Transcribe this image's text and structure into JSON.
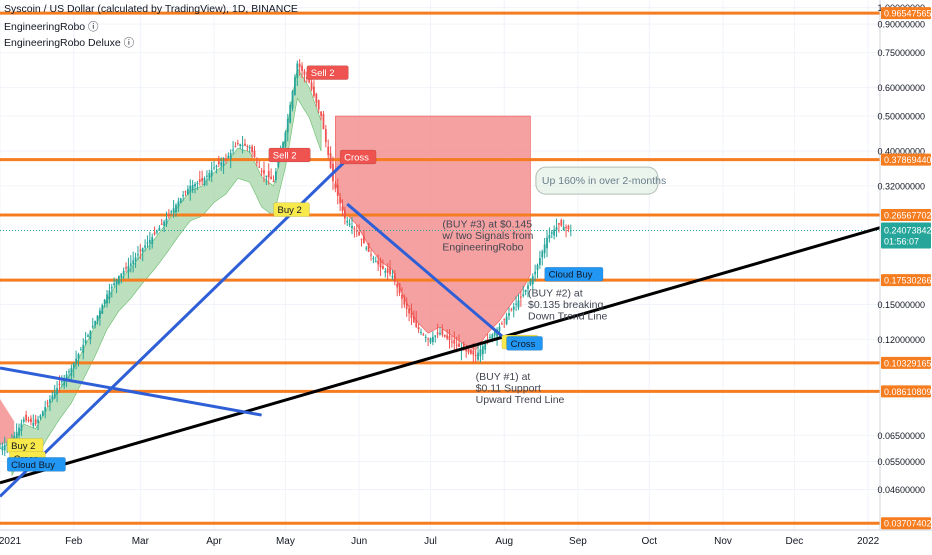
{
  "header": {
    "title": "Syscoin / US Dollar (calculated by TradingView), 1D, BINANCE",
    "indicator1": "EngineeringRobo ⓘ",
    "indicator2": "EngineeringRobo Deluxe ⓘ"
  },
  "chart_data": {
    "type": "candlestick",
    "currency": "USD",
    "y_scale": "log",
    "ylim": [
      0.0355,
      1.05
    ],
    "x_start": "2021-01-01",
    "x_end": "2022-01-06",
    "y_ticks": [
      1.0,
      0.9,
      0.75,
      0.6,
      0.5,
      0.4,
      0.32,
      0.15,
      0.12,
      0.065,
      0.055,
      0.046
    ],
    "y_tick_labels": [
      "1.00000000",
      "0.90000000",
      "0.75000000",
      "0.60000000",
      "0.50000000",
      "0.40000000",
      "0.32000000",
      "0.15000000",
      "0.12000000",
      "0.06500000",
      "0.05500000",
      "0.04600000"
    ],
    "x_ticks": [
      {
        "date": "2021-01-01",
        "label": "2021"
      },
      {
        "date": "2021-02-01",
        "label": "Feb"
      },
      {
        "date": "2021-03-01",
        "label": "Mar"
      },
      {
        "date": "2021-04-01",
        "label": "Apr"
      },
      {
        "date": "2021-05-01",
        "label": "May"
      },
      {
        "date": "2021-06-01",
        "label": "Jun"
      },
      {
        "date": "2021-07-01",
        "label": "Jul"
      },
      {
        "date": "2021-08-01",
        "label": "Aug"
      },
      {
        "date": "2021-09-01",
        "label": "Sep"
      },
      {
        "date": "2021-10-01",
        "label": "Oct"
      },
      {
        "date": "2021-11-01",
        "label": "Nov"
      },
      {
        "date": "2021-12-01",
        "label": "Dec"
      },
      {
        "date": "2022-01-01",
        "label": "2022"
      }
    ],
    "current_price": {
      "value": 0.24073842,
      "label": "0.24073842",
      "countdown": "01:56:07"
    },
    "levels": [
      {
        "value": 0.96547565,
        "label": "0.96547565"
      },
      {
        "value": 0.3786944,
        "label": "0.37869440"
      },
      {
        "value": 0.26567702,
        "label": "0.26567702"
      },
      {
        "value": 0.17530266,
        "label": "0.17530266"
      },
      {
        "value": 0.10329165,
        "label": "0.10329165"
      },
      {
        "value": 0.08610809,
        "label": "0.08610809"
      },
      {
        "value": 0.03707402,
        "label": "0.03707402"
      }
    ],
    "series": [
      {
        "date": "2021-01-01",
        "close": 0.06
      },
      {
        "date": "2021-01-06",
        "close": 0.063
      },
      {
        "date": "2021-01-11",
        "close": 0.072
      },
      {
        "date": "2021-01-16",
        "close": 0.07
      },
      {
        "date": "2021-01-21",
        "close": 0.08
      },
      {
        "date": "2021-01-26",
        "close": 0.09
      },
      {
        "date": "2021-01-31",
        "close": 0.1
      },
      {
        "date": "2021-02-05",
        "close": 0.116
      },
      {
        "date": "2021-02-10",
        "close": 0.135
      },
      {
        "date": "2021-02-15",
        "close": 0.16
      },
      {
        "date": "2021-02-20",
        "close": 0.18
      },
      {
        "date": "2021-02-25",
        "close": 0.195
      },
      {
        "date": "2021-03-02",
        "close": 0.215
      },
      {
        "date": "2021-03-07",
        "close": 0.235
      },
      {
        "date": "2021-03-12",
        "close": 0.26
      },
      {
        "date": "2021-03-17",
        "close": 0.29
      },
      {
        "date": "2021-03-22",
        "close": 0.32
      },
      {
        "date": "2021-03-27",
        "close": 0.33
      },
      {
        "date": "2021-04-01",
        "close": 0.36
      },
      {
        "date": "2021-04-06",
        "close": 0.38
      },
      {
        "date": "2021-04-11",
        "close": 0.42
      },
      {
        "date": "2021-04-16",
        "close": 0.41
      },
      {
        "date": "2021-04-21",
        "close": 0.35
      },
      {
        "date": "2021-04-26",
        "close": 0.33
      },
      {
        "date": "2021-05-01",
        "close": 0.45
      },
      {
        "date": "2021-05-06",
        "close": 0.7
      },
      {
        "date": "2021-05-11",
        "close": 0.62
      },
      {
        "date": "2021-05-16",
        "close": 0.5
      },
      {
        "date": "2021-05-21",
        "close": 0.33
      },
      {
        "date": "2021-05-26",
        "close": 0.26
      },
      {
        "date": "2021-05-31",
        "close": 0.24
      },
      {
        "date": "2021-06-05",
        "close": 0.21
      },
      {
        "date": "2021-06-10",
        "close": 0.19
      },
      {
        "date": "2021-06-15",
        "close": 0.18
      },
      {
        "date": "2021-06-20",
        "close": 0.15
      },
      {
        "date": "2021-06-25",
        "close": 0.13
      },
      {
        "date": "2021-06-30",
        "close": 0.12
      },
      {
        "date": "2021-07-05",
        "close": 0.125
      },
      {
        "date": "2021-07-10",
        "close": 0.118
      },
      {
        "date": "2021-07-15",
        "close": 0.112
      },
      {
        "date": "2021-07-20",
        "close": 0.108
      },
      {
        "date": "2021-07-25",
        "close": 0.12
      },
      {
        "date": "2021-07-30",
        "close": 0.13
      },
      {
        "date": "2021-08-04",
        "close": 0.145
      },
      {
        "date": "2021-08-09",
        "close": 0.16
      },
      {
        "date": "2021-08-14",
        "close": 0.185
      },
      {
        "date": "2021-08-19",
        "close": 0.23
      },
      {
        "date": "2021-08-24",
        "close": 0.25
      },
      {
        "date": "2021-08-29",
        "close": 0.241
      }
    ],
    "trendlines": [
      {
        "name": "rising support",
        "color": "#000000",
        "from": {
          "date": "2021-01-01",
          "value": 0.048
        },
        "to": {
          "date": "2022-01-06",
          "value": 0.245
        }
      },
      {
        "name": "blue uptrend",
        "color": "#2f5fd6",
        "from": {
          "date": "2021-01-01",
          "value": 0.044
        },
        "to": {
          "date": "2021-05-28",
          "value": 0.385
        }
      },
      {
        "name": "blue downtrend",
        "color": "#2f5fd6",
        "from": {
          "date": "2021-05-27",
          "value": 0.285
        },
        "to": {
          "date": "2021-08-03",
          "value": 0.118
        }
      },
      {
        "name": "blue old downtrend",
        "color": "#2f5fd6",
        "from": {
          "date": "2021-01-01",
          "value": 0.1
        },
        "to": {
          "date": "2021-04-21",
          "value": 0.074
        }
      }
    ],
    "signals": [
      {
        "label": "Buy 2",
        "date": "2021-01-04",
        "value": 0.061,
        "color": "#f7e84b",
        "text_color": "#131722"
      },
      {
        "label": "Cross",
        "date": "2021-01-05",
        "value": 0.056,
        "color": "#f7e84b",
        "text_color": "#131722"
      },
      {
        "label": "Cloud Buy",
        "date": "2021-01-04",
        "value": 0.054,
        "color": "#2196f3",
        "text_color": "#131722"
      },
      {
        "label": "Sell 2",
        "date": "2021-05-10",
        "value": 0.66,
        "color": "#ef5350",
        "text_color": "#ffffff"
      },
      {
        "label": "Sell 2",
        "date": "2021-04-24",
        "value": 0.39,
        "color": "#ef5350",
        "text_color": "#ffffff"
      },
      {
        "label": "Buy 2",
        "date": "2021-04-26",
        "value": 0.275,
        "color": "#f7e84b",
        "text_color": "#131722"
      },
      {
        "label": "Cross",
        "date": "2021-05-24",
        "value": 0.385,
        "color": "#ef5350",
        "text_color": "#ffffff"
      },
      {
        "label": "Buy 2",
        "date": "2021-07-31",
        "value": 0.118,
        "color": "#f7e84b",
        "text_color": "#131722"
      },
      {
        "label": "Cross",
        "date": "2021-08-02",
        "value": 0.117,
        "color": "#2196f3",
        "text_color": "#131722"
      },
      {
        "label": "Cloud Buy",
        "date": "2021-08-18",
        "value": 0.182,
        "color": "#2196f3",
        "text_color": "#131722"
      }
    ],
    "annotations": [
      {
        "lines": [
          "(BUY #3) at $0.145",
          "w/ two Signals from",
          "EngineeringRobo"
        ],
        "date": "2021-07-06",
        "value": 0.245
      },
      {
        "lines": [
          "(BUY #2) at",
          "$0.135 breaking",
          "Down Trend Line"
        ],
        "date": "2021-08-11",
        "value": 0.158
      },
      {
        "lines": [
          "(BUY #1) at",
          "$0.11 Support",
          "Upward Trend Line"
        ],
        "date": "2021-07-20",
        "value": 0.0925
      }
    ],
    "callout": {
      "text": "Up 160% in over 2-months",
      "date": "2021-08-16",
      "value": 0.33
    }
  }
}
